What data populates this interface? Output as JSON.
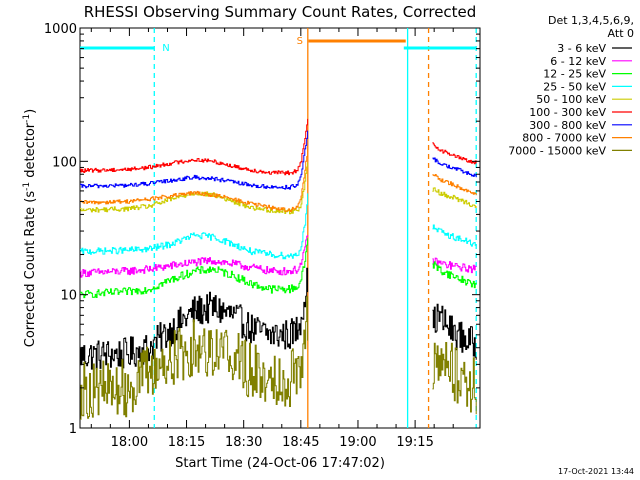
{
  "chart_data": {
    "type": "line",
    "title": "RHESSI Observing Summary Count Rates, Corrected",
    "xlabel": "Start Time (24-Oct-06 17:47:02)",
    "ylabel": "Corrected Count Rate (s⁻¹ detector⁻¹)",
    "y_scale": "log",
    "ylim": [
      1,
      1000
    ],
    "y_ticks": [
      1,
      10,
      100,
      1000
    ],
    "x_ticks": [
      "18:00",
      "18:15",
      "18:30",
      "18:45",
      "19:00",
      "19:15"
    ],
    "x_range_minutes": [
      0,
      105
    ],
    "legend_header": [
      "Det 1,3,4,5,6,9,",
      "Att 0"
    ],
    "legend_position": "right",
    "footer_date": "17-Oct-2021 13:44",
    "flags": [
      {
        "label": "N",
        "color": "#00ffff",
        "segments": [
          [
            0,
            19.5
          ],
          [
            85,
            104
          ]
        ]
      },
      {
        "label": "S",
        "color": "#ff8000",
        "segments": [
          [
            60,
            85.5
          ]
        ]
      }
    ],
    "vlines": [
      {
        "t": 19.5,
        "color": "#00ffff",
        "dash": true
      },
      {
        "t": 59.8,
        "color": "#ff8000",
        "dash": false
      },
      {
        "t": 86.0,
        "color": "#00ffff",
        "dash": false
      },
      {
        "t": 91.5,
        "color": "#ff8000",
        "dash": true
      },
      {
        "t": 104.0,
        "color": "#00ffff",
        "dash": true
      }
    ],
    "gap": [
      60.5,
      92.5
    ],
    "series": [
      {
        "name": "3 - 6 keV",
        "color": "#000000",
        "pre": [
          [
            0,
            3.5
          ],
          [
            12,
            3.6
          ],
          [
            18,
            4.0
          ],
          [
            24,
            5.5
          ],
          [
            30,
            7.5
          ],
          [
            35,
            8.0
          ],
          [
            40,
            7.0
          ],
          [
            45,
            5.5
          ],
          [
            50,
            5.0
          ],
          [
            55,
            5.0
          ],
          [
            57,
            5.5
          ],
          [
            58,
            7.0
          ],
          [
            59,
            10.0
          ],
          [
            59.8,
            14.0
          ]
        ],
        "post": [
          [
            92.5,
            6.0
          ],
          [
            94,
            7.0
          ],
          [
            97,
            5.5
          ],
          [
            100,
            4.8
          ],
          [
            104,
            4.2
          ]
        ],
        "noise": 0.12
      },
      {
        "name": "6 - 12 keV",
        "color": "#ff00ff",
        "pre": [
          [
            0,
            14.5
          ],
          [
            12,
            15.0
          ],
          [
            18,
            15.5
          ],
          [
            24,
            16.5
          ],
          [
            30,
            17.5
          ],
          [
            35,
            18.0
          ],
          [
            40,
            17.0
          ],
          [
            45,
            16.0
          ],
          [
            50,
            15.0
          ],
          [
            55,
            15.0
          ],
          [
            57,
            15.5
          ],
          [
            58,
            17.0
          ],
          [
            59,
            22.0
          ],
          [
            59.8,
            30.0
          ]
        ],
        "post": [
          [
            92.5,
            18.0
          ],
          [
            95,
            17.0
          ],
          [
            100,
            16.0
          ],
          [
            104,
            15.5
          ]
        ],
        "noise": 0.03
      },
      {
        "name": "12 - 25 keV",
        "color": "#00ff00",
        "pre": [
          [
            0,
            10.0
          ],
          [
            12,
            10.5
          ],
          [
            18,
            11.0
          ],
          [
            24,
            13.0
          ],
          [
            30,
            15.0
          ],
          [
            35,
            15.5
          ],
          [
            40,
            14.0
          ],
          [
            45,
            12.0
          ],
          [
            50,
            11.0
          ],
          [
            55,
            11.0
          ],
          [
            57,
            11.5
          ],
          [
            58,
            13.0
          ],
          [
            59,
            18.0
          ],
          [
            59.8,
            28.0
          ]
        ],
        "post": [
          [
            92.5,
            17.0
          ],
          [
            95,
            15.0
          ],
          [
            100,
            13.0
          ],
          [
            104,
            11.8
          ]
        ],
        "noise": 0.03
      },
      {
        "name": "25 - 50 keV",
        "color": "#00ffff",
        "pre": [
          [
            0,
            21.0
          ],
          [
            12,
            21.5
          ],
          [
            18,
            22.0
          ],
          [
            24,
            24.0
          ],
          [
            30,
            28.0
          ],
          [
            35,
            27.0
          ],
          [
            40,
            24.0
          ],
          [
            45,
            21.0
          ],
          [
            50,
            20.0
          ],
          [
            55,
            19.5
          ],
          [
            57,
            20.0
          ],
          [
            58,
            23.0
          ],
          [
            59,
            35.0
          ],
          [
            59.8,
            60.0
          ]
        ],
        "post": [
          [
            92.5,
            32.0
          ],
          [
            95,
            29.0
          ],
          [
            100,
            26.0
          ],
          [
            104,
            23.5
          ]
        ],
        "noise": 0.025
      },
      {
        "name": "50 - 100 keV",
        "color": "#cccc00",
        "pre": [
          [
            0,
            43.0
          ],
          [
            12,
            44.0
          ],
          [
            18,
            46.0
          ],
          [
            24,
            52.0
          ],
          [
            30,
            58.0
          ],
          [
            35,
            56.0
          ],
          [
            40,
            50.0
          ],
          [
            45,
            45.0
          ],
          [
            50,
            43.0
          ],
          [
            55,
            42.0
          ],
          [
            57,
            43.0
          ],
          [
            58,
            48.0
          ],
          [
            59,
            70.0
          ],
          [
            59.8,
            100.0
          ]
        ],
        "post": [
          [
            92.5,
            62.0
          ],
          [
            95,
            57.0
          ],
          [
            100,
            51.0
          ],
          [
            104,
            46.0
          ]
        ],
        "noise": 0.018
      },
      {
        "name": "100 - 300 keV",
        "color": "#ff0000",
        "pre": [
          [
            0,
            85.0
          ],
          [
            12,
            87.0
          ],
          [
            18,
            90.0
          ],
          [
            24,
            97.0
          ],
          [
            30,
            103.0
          ],
          [
            35,
            100.0
          ],
          [
            40,
            92.0
          ],
          [
            45,
            86.0
          ],
          [
            50,
            82.0
          ],
          [
            55,
            82.0
          ],
          [
            57,
            85.0
          ],
          [
            58,
            100.0
          ],
          [
            59,
            150.0
          ],
          [
            59.8,
            210.0
          ]
        ],
        "post": [
          [
            92.5,
            135.0
          ],
          [
            95,
            120.0
          ],
          [
            100,
            105.0
          ],
          [
            104,
            97.0
          ]
        ],
        "noise": 0.015
      },
      {
        "name": "300 - 800 keV",
        "color": "#0000ff",
        "pre": [
          [
            0,
            65.0
          ],
          [
            12,
            66.0
          ],
          [
            18,
            68.0
          ],
          [
            24,
            72.0
          ],
          [
            30,
            76.0
          ],
          [
            35,
            74.0
          ],
          [
            40,
            70.0
          ],
          [
            45,
            66.0
          ],
          [
            50,
            64.0
          ],
          [
            55,
            64.0
          ],
          [
            57,
            66.0
          ],
          [
            58,
            80.0
          ],
          [
            59,
            120.0
          ],
          [
            59.8,
            170.0
          ]
        ],
        "post": [
          [
            92.5,
            105.0
          ],
          [
            95,
            95.0
          ],
          [
            100,
            85.0
          ],
          [
            104,
            77.0
          ]
        ],
        "noise": 0.015
      },
      {
        "name": "800 - 7000 keV",
        "color": "#ff8000",
        "pre": [
          [
            0,
            49.0
          ],
          [
            12,
            50.0
          ],
          [
            18,
            52.0
          ],
          [
            24,
            55.0
          ],
          [
            30,
            58.0
          ],
          [
            35,
            56.0
          ],
          [
            40,
            52.0
          ],
          [
            45,
            48.0
          ],
          [
            50,
            45.0
          ],
          [
            55,
            43.0
          ],
          [
            57,
            45.0
          ],
          [
            58,
            55.0
          ],
          [
            59,
            85.0
          ],
          [
            59.8,
            130.0
          ]
        ],
        "post": [
          [
            92.5,
            80.0
          ],
          [
            95,
            72.0
          ],
          [
            100,
            63.0
          ],
          [
            104,
            57.0
          ]
        ],
        "noise": 0.015
      },
      {
        "name": "7000 - 15000 keV",
        "color": "#808000",
        "pre": [
          [
            0,
            1.9
          ],
          [
            12,
            2.0
          ],
          [
            18,
            2.6
          ],
          [
            24,
            3.3
          ],
          [
            30,
            4.0
          ],
          [
            35,
            4.0
          ],
          [
            40,
            3.6
          ],
          [
            45,
            2.6
          ],
          [
            50,
            2.4
          ],
          [
            55,
            2.4
          ],
          [
            57,
            2.8
          ],
          [
            58,
            3.5
          ],
          [
            59,
            5.0
          ],
          [
            59.8,
            7.0
          ]
        ],
        "post": [
          [
            92.5,
            2.8
          ],
          [
            95,
            3.0
          ],
          [
            100,
            2.4
          ],
          [
            104,
            2.0
          ]
        ],
        "noise": 0.22
      }
    ]
  }
}
